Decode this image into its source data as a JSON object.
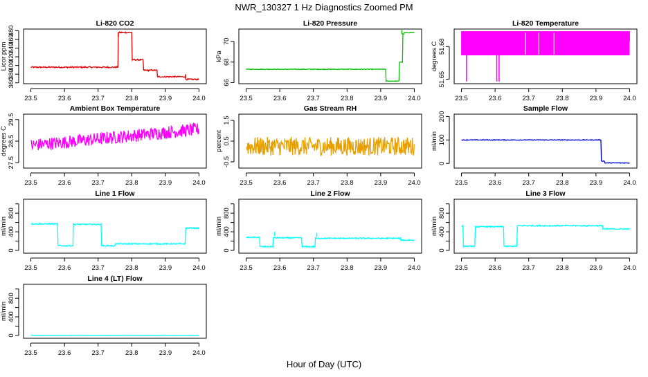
{
  "title": "NWR_130327  1 Hz Diagnostics Zoomed PM",
  "xlabel": "Hour of Day (UTC)",
  "colors": {
    "frame": "#000000",
    "red": "#e00000",
    "green": "#00c000",
    "magenta": "#ff00ff",
    "orange": "#e8a000",
    "blue": "#0000dd",
    "cyan": "#00ffff"
  },
  "chart_data": [
    {
      "type": "line",
      "title": "Li-820 CO2",
      "ylabel": "Licor ppm",
      "xlim": [
        23.5,
        24.0
      ],
      "ylim": [
        358,
        484
      ],
      "xticks": [
        "23.5",
        "23.6",
        "23.7",
        "23.8",
        "23.9",
        "24.0"
      ],
      "yticks": [
        360,
        380,
        400,
        420,
        440,
        460,
        480
      ],
      "color_key": "red",
      "series": [
        {
          "name": "CO2",
          "segments": [
            [
              23.5,
              23.76,
              396
            ],
            [
              23.76,
              23.8,
              476
            ],
            [
              23.8,
              23.835,
              413
            ],
            [
              23.835,
              23.875,
              389
            ],
            [
              23.875,
              23.96,
              374
            ],
            [
              23.96,
              24.0,
              368
            ]
          ],
          "noise": 1.5,
          "spikes": [
            [
              23.76,
              476
            ],
            [
              23.96,
              380
            ]
          ]
        }
      ]
    },
    {
      "type": "line",
      "title": "Li-820 Pressure",
      "ylabel": "kPa",
      "xlim": [
        23.5,
        24.0
      ],
      "ylim": [
        65.9,
        71.2
      ],
      "xticks": [
        "23.5",
        "23.6",
        "23.7",
        "23.8",
        "23.9",
        "24.0"
      ],
      "yticks": [
        66,
        68,
        70
      ],
      "color_key": "green",
      "series": [
        {
          "name": "Pressure",
          "segments": [
            [
              23.5,
              23.915,
              67.3
            ],
            [
              23.915,
              23.955,
              66.15
            ],
            [
              23.955,
              23.965,
              68.0
            ],
            [
              23.965,
              23.97,
              70.7
            ],
            [
              23.97,
              24.0,
              70.85
            ]
          ],
          "noise": 0.03,
          "spikes": [
            [
              23.963,
              71.1
            ]
          ]
        }
      ]
    },
    {
      "type": "line",
      "title": "Li-820 Temperature",
      "ylabel": "degrees C",
      "xlim": [
        23.5,
        24.0
      ],
      "ylim": [
        51.646,
        51.696
      ],
      "xticks": [
        "23.5",
        "23.6",
        "23.7",
        "23.8",
        "23.9",
        "24.0"
      ],
      "yticks": [
        51.65,
        51.68
      ],
      "ytick_labels": [
        "51.65",
        "51.68"
      ],
      "color_key": "magenta",
      "series": [
        {
          "name": "Temperature",
          "band": [
            51.672,
            51.694
          ],
          "noise": 0,
          "dips": [
            [
              23.515,
              51.648
            ],
            [
              23.605,
              51.648
            ],
            [
              23.612,
              51.648
            ]
          ]
        }
      ]
    },
    {
      "type": "line",
      "title": "Ambient Box Temperature",
      "ylabel": "degrees C",
      "xlim": [
        23.5,
        24.0
      ],
      "ylim": [
        27.25,
        29.75
      ],
      "xticks": [
        "23.5",
        "23.6",
        "23.7",
        "23.8",
        "23.9",
        "24.0"
      ],
      "yticks": [
        27.5,
        28.5,
        29.5
      ],
      "color_key": "magenta",
      "series": [
        {
          "name": "Box Temperature",
          "trend": [
            [
              23.5,
              28.3
            ],
            [
              24.0,
              29.05
            ]
          ],
          "noise": 0.3
        }
      ]
    },
    {
      "type": "line",
      "title": "Gas Stream RH",
      "ylabel": "percent",
      "xlim": [
        23.5,
        24.0
      ],
      "ylim": [
        -0.8,
        1.8
      ],
      "xticks": [
        "23.5",
        "23.6",
        "23.7",
        "23.8",
        "23.9",
        "24.0"
      ],
      "yticks": [
        -0.5,
        0.5,
        1.5
      ],
      "color_key": "orange",
      "series": [
        {
          "name": "RH",
          "trend": [
            [
              23.5,
              0.25
            ],
            [
              24.0,
              0.25
            ]
          ],
          "noise": 0.45
        }
      ]
    },
    {
      "type": "line",
      "title": "Sample Flow",
      "ylabel": "ml/min",
      "xlim": [
        23.5,
        24.0
      ],
      "ylim": [
        -20,
        210
      ],
      "xticks": [
        "23.5",
        "23.6",
        "23.7",
        "23.8",
        "23.9",
        "24.0"
      ],
      "yticks": [
        0,
        100,
        200
      ],
      "color_key": "blue",
      "series": [
        {
          "name": "Sample Flow",
          "segments": [
            [
              23.5,
              23.915,
              100
            ],
            [
              23.915,
              23.925,
              10
            ],
            [
              23.925,
              24.0,
              2
            ]
          ],
          "noise": 1.5
        }
      ]
    },
    {
      "type": "line",
      "title": "Line 1 Flow",
      "ylabel": "ml/min",
      "xlim": [
        23.5,
        24.0
      ],
      "ylim": [
        -60,
        1100
      ],
      "xticks": [
        "23.5",
        "23.6",
        "23.7",
        "23.8",
        "23.9",
        "24.0"
      ],
      "yticks": [
        0,
        200,
        400,
        600,
        800,
        1000
      ],
      "ytick_labels": [
        "0",
        "400",
        "800"
      ],
      "color_key": "cyan",
      "series": [
        {
          "name": "Line 1",
          "segments": [
            [
              23.5,
              23.58,
              570
            ],
            [
              23.58,
              23.625,
              100
            ],
            [
              23.625,
              23.71,
              560
            ],
            [
              23.71,
              23.75,
              100
            ],
            [
              23.75,
              23.96,
              140
            ],
            [
              23.96,
              24.0,
              480
            ]
          ],
          "noise": 12
        }
      ]
    },
    {
      "type": "line",
      "title": "Line 2 Flow",
      "ylabel": "ml/min",
      "xlim": [
        23.5,
        24.0
      ],
      "ylim": [
        -60,
        1100
      ],
      "xticks": [
        "23.5",
        "23.6",
        "23.7",
        "23.8",
        "23.9",
        "24.0"
      ],
      "yticks": [
        0,
        200,
        400,
        600,
        800,
        1000
      ],
      "ytick_labels": [
        "0",
        "400",
        "800"
      ],
      "color_key": "cyan",
      "series": [
        {
          "name": "Line 2",
          "segments": [
            [
              23.5,
              23.54,
              280
            ],
            [
              23.54,
              23.58,
              80
            ],
            [
              23.58,
              23.665,
              270
            ],
            [
              23.665,
              23.705,
              80
            ],
            [
              23.705,
              23.96,
              260
            ],
            [
              23.96,
              24.0,
              220
            ]
          ],
          "noise": 12,
          "spikes": [
            [
              23.585,
              400
            ],
            [
              23.71,
              380
            ]
          ]
        }
      ]
    },
    {
      "type": "line",
      "title": "Line 3 Flow",
      "ylabel": "ml/min",
      "xlim": [
        23.5,
        24.0
      ],
      "ylim": [
        -60,
        1100
      ],
      "xticks": [
        "23.5",
        "23.6",
        "23.7",
        "23.8",
        "23.9",
        "24.0"
      ],
      "yticks": [
        0,
        200,
        400,
        600,
        800,
        1000
      ],
      "ytick_labels": [
        "0",
        "400",
        "800"
      ],
      "color_key": "cyan",
      "series": [
        {
          "name": "Line 3",
          "segments": [
            [
              23.5,
              23.505,
              520
            ],
            [
              23.505,
              23.54,
              90
            ],
            [
              23.54,
              23.625,
              510
            ],
            [
              23.625,
              23.665,
              90
            ],
            [
              23.665,
              23.92,
              530
            ],
            [
              23.92,
              24.0,
              460
            ]
          ],
          "noise": 12
        }
      ]
    },
    {
      "type": "line",
      "title": "Line 4 (LT) Flow",
      "ylabel": "ml/min",
      "xlim": [
        23.5,
        24.0
      ],
      "ylim": [
        -60,
        1100
      ],
      "xticks": [
        "23.5",
        "23.6",
        "23.7",
        "23.8",
        "23.9",
        "24.0"
      ],
      "yticks": [
        0,
        200,
        400,
        600,
        800,
        1000
      ],
      "ytick_labels": [
        "0",
        "400",
        "800"
      ],
      "color_key": "cyan",
      "series": [
        {
          "name": "Line 4",
          "segments": [
            [
              23.5,
              24.0,
              5
            ]
          ],
          "noise": 3
        }
      ]
    }
  ]
}
